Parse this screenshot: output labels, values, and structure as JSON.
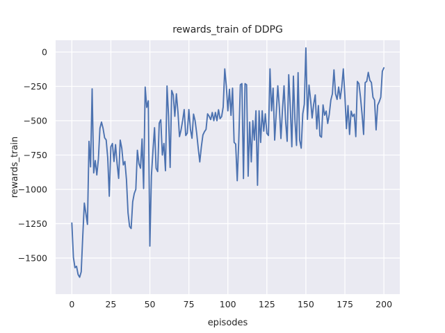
{
  "chart_data": {
    "type": "line",
    "title": "rewards_train of DDPG",
    "xlabel": "episodes",
    "ylabel": "rewards_train",
    "x_ticks": [
      0,
      25,
      50,
      75,
      100,
      125,
      150,
      175,
      200
    ],
    "x_tick_labels": [
      "0",
      "25",
      "50",
      "75",
      "100",
      "125",
      "150",
      "175",
      "200"
    ],
    "y_ticks": [
      0,
      -250,
      -500,
      -750,
      -1000,
      -1250,
      -1500
    ],
    "y_tick_labels": [
      "0",
      "−250",
      "−500",
      "−750",
      "−1000",
      "−1250",
      "−1500"
    ],
    "xlim": [
      -10.4,
      210.2
    ],
    "ylim": [
      -1763,
      86
    ],
    "grid": true,
    "legend_position": "none",
    "style": {
      "figure_bg": "#ffffff",
      "axes_bg": "#eaeaf2",
      "grid_color": "#ffffff",
      "line_color": "#4c72b0",
      "text_color": "#262626"
    },
    "series": [
      {
        "name": "rewards_train",
        "x_start": 0,
        "x_step": 1,
        "values": [
          -1245,
          -1495,
          -1570,
          -1560,
          -1620,
          -1640,
          -1600,
          -1340,
          -1100,
          -1175,
          -1255,
          -650,
          -836,
          -268,
          -880,
          -790,
          -895,
          -780,
          -555,
          -510,
          -555,
          -624,
          -640,
          -772,
          -1050,
          -690,
          -666,
          -797,
          -674,
          -813,
          -920,
          -641,
          -700,
          -822,
          -797,
          -929,
          -1170,
          -1270,
          -1285,
          -1090,
          -1030,
          -1000,
          -715,
          -813,
          -846,
          -633,
          -994,
          -255,
          -403,
          -355,
          -1413,
          -900,
          -715,
          -551,
          -846,
          -870,
          -518,
          -493,
          -750,
          -666,
          -864,
          -247,
          -468,
          -840,
          -280,
          -313,
          -468,
          -304,
          -436,
          -616,
          -567,
          -500,
          -419,
          -608,
          -590,
          -419,
          -563,
          -628,
          -452,
          -500,
          -590,
          -700,
          -800,
          -690,
          -604,
          -580,
          -563,
          -450,
          -468,
          -492,
          -440,
          -500,
          -440,
          -500,
          -420,
          -485,
          -470,
          -400,
          -123,
          -246,
          -428,
          -271,
          -461,
          -263,
          -658,
          -670,
          -937,
          -641,
          -238,
          -230,
          -921,
          -230,
          -238,
          -904,
          -510,
          -800,
          -500,
          -641,
          -428,
          -970,
          -428,
          -658,
          -428,
          -576,
          -450,
          -592,
          -608,
          -123,
          -428,
          -263,
          -641,
          -444,
          -246,
          -403,
          -630,
          -420,
          -246,
          -500,
          -650,
          -165,
          -400,
          -690,
          -175,
          -500,
          -680,
          -150,
          -640,
          -700,
          -450,
          -380,
          30,
          -490,
          -240,
          -345,
          -480,
          -380,
          -312,
          -560,
          -390,
          -610,
          -620,
          -385,
          -460,
          -430,
          -520,
          -452,
          -350,
          -304,
          -130,
          -304,
          -345,
          -255,
          -340,
          -255,
          -123,
          -320,
          -558,
          -390,
          -600,
          -430,
          -469,
          -452,
          -616,
          -214,
          -230,
          -329,
          -452,
          -600,
          -222,
          -214,
          -148,
          -206,
          -222,
          -329,
          -350,
          -567,
          -387,
          -362,
          -329,
          -140,
          -115
        ]
      }
    ]
  }
}
